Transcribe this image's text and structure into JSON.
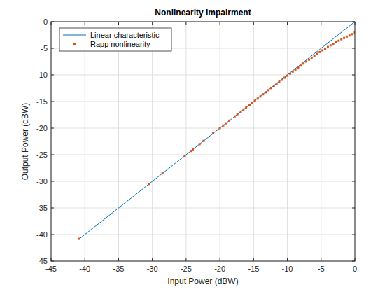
{
  "chart_data": {
    "type": "line",
    "title": "Nonlinearity Impairment",
    "x_label": "Input Power (dBW)",
    "y_label": "Output Power (dBW)",
    "xlim": [
      -45,
      0
    ],
    "ylim": [
      -45,
      0
    ],
    "xticks": [
      -45,
      -40,
      -35,
      -30,
      -25,
      -20,
      -15,
      -10,
      -5,
      0
    ],
    "yticks": [
      -45,
      -40,
      -35,
      -30,
      -25,
      -20,
      -15,
      -10,
      -5,
      0
    ],
    "grid": true,
    "legend": "northwest",
    "series": [
      {
        "name": "Linear characteristic",
        "type": "line",
        "color": "#0072bd",
        "line_style": "solid",
        "x": [
          -40.8,
          0
        ],
        "values": [
          -40.8,
          0
        ]
      },
      {
        "name": "Rapp nonlinearity",
        "type": "scatter",
        "color": "#d95319",
        "marker": "dot",
        "x": [
          -40.8,
          -30.5,
          -28.5,
          -25.2,
          -24.3,
          -24.0,
          -23.0,
          -22.4,
          -21.0,
          -20.0,
          -19.5,
          -19.1,
          -18.6,
          -17.8,
          -17.4,
          -16.9,
          -16.5,
          -16.1,
          -15.6,
          -15.3,
          -14.8,
          -14.4,
          -14.0,
          -13.6,
          -13.2,
          -12.8,
          -12.4,
          -12.0,
          -11.6,
          -11.2,
          -10.8,
          -10.4,
          -10.0,
          -9.6,
          -9.2,
          -8.8,
          -8.4,
          -8.0,
          -7.6,
          -7.2,
          -6.8,
          -6.4,
          -6.0,
          -5.6,
          -5.2,
          -4.8,
          -4.4,
          -4.0,
          -3.6,
          -3.2,
          -2.8,
          -2.4,
          -2.0,
          -1.6,
          -1.2,
          -0.8,
          -0.4,
          0.0
        ],
        "values": [
          -40.8,
          -30.5,
          -28.5,
          -25.2,
          -24.3,
          -24.0,
          -23.0,
          -22.4,
          -21.0,
          -20.0,
          -19.5,
          -19.1,
          -18.6,
          -17.8,
          -17.4,
          -16.9,
          -16.5,
          -16.1,
          -15.6,
          -15.3,
          -14.85,
          -14.45,
          -14.05,
          -13.65,
          -13.27,
          -12.87,
          -12.48,
          -12.1,
          -11.7,
          -11.31,
          -10.92,
          -10.53,
          -10.15,
          -9.77,
          -9.38,
          -9.0,
          -8.62,
          -8.25,
          -7.88,
          -7.5,
          -7.13,
          -6.77,
          -6.4,
          -6.05,
          -5.71,
          -5.39,
          -5.07,
          -4.75,
          -4.45,
          -4.15,
          -3.86,
          -3.58,
          -3.3,
          -3.06,
          -2.8,
          -2.6,
          -2.35,
          -2.05
        ]
      }
    ]
  }
}
